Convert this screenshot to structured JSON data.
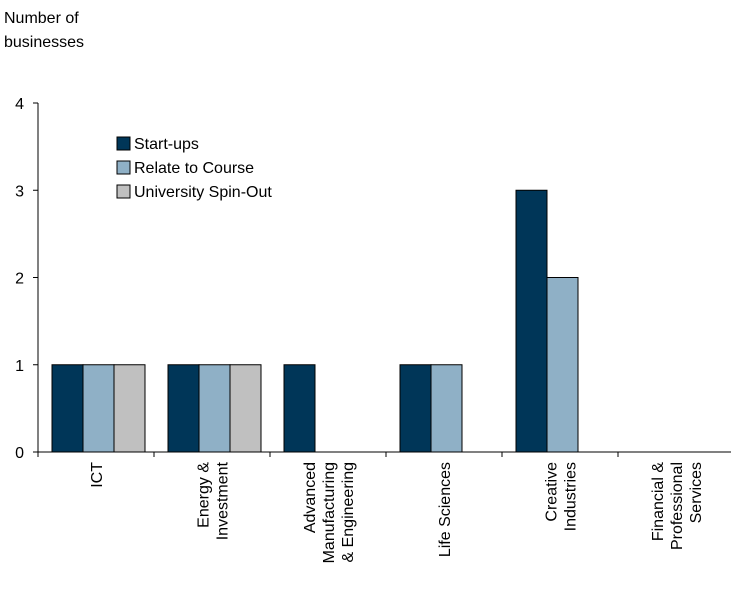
{
  "chart_data": {
    "type": "bar",
    "title": "",
    "ylabel": "Number of businesses",
    "ylabel_lines": [
      "Number of",
      "businesses"
    ],
    "xlabel": "",
    "ylim": [
      0,
      4
    ],
    "yticks": [
      0,
      1,
      2,
      3,
      4
    ],
    "grid": false,
    "legend_position": "top-left",
    "categories": [
      "ICT",
      "Energy & Investment",
      "Advanced Manufacturing & Engineering",
      "Life Sciences",
      "Creative Industries",
      "Financial & Professional Services"
    ],
    "category_label_lines": [
      [
        "ICT"
      ],
      [
        "Energy &",
        "Investment"
      ],
      [
        "Advanced",
        "Manufacturing",
        "& Engineering"
      ],
      [
        "Life Sciences"
      ],
      [
        "Creative",
        "Industries"
      ],
      [
        "Financial &",
        "Professional",
        "Services"
      ]
    ],
    "series": [
      {
        "name": "Start-ups",
        "color": "#003658",
        "values": [
          1,
          1,
          1,
          1,
          3,
          0
        ]
      },
      {
        "name": "Relate to Course",
        "color": "#8fb0c6",
        "values": [
          1,
          1,
          0,
          1,
          2,
          0
        ]
      },
      {
        "name": "University Spin-Out",
        "color": "#c0c0c0",
        "values": [
          1,
          1,
          0,
          0,
          0,
          0
        ]
      }
    ]
  }
}
